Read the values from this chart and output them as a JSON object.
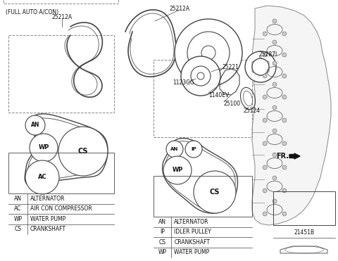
{
  "bg_color": "#ffffff",
  "line_color": "#444444",
  "dash_color": "#888888",
  "full_auto_label": "(FULL AUTO A/CON)",
  "fr_label": "FR.",
  "part_21451B": "21451B",
  "legend_left_rows": [
    [
      "AN",
      "ALTERNATOR"
    ],
    [
      "AC",
      "AIR CON COMPRESSOR"
    ],
    [
      "WP",
      "WATER PUMP"
    ],
    [
      "CS",
      "CRANKSHAFT"
    ]
  ],
  "legend_center_rows": [
    [
      "AN",
      "ALTERNATOR"
    ],
    [
      "IP",
      "IDLER PULLEY"
    ],
    [
      "CS",
      "CRANKSHAFT"
    ],
    [
      "WP",
      "WATER PUMP"
    ]
  ]
}
